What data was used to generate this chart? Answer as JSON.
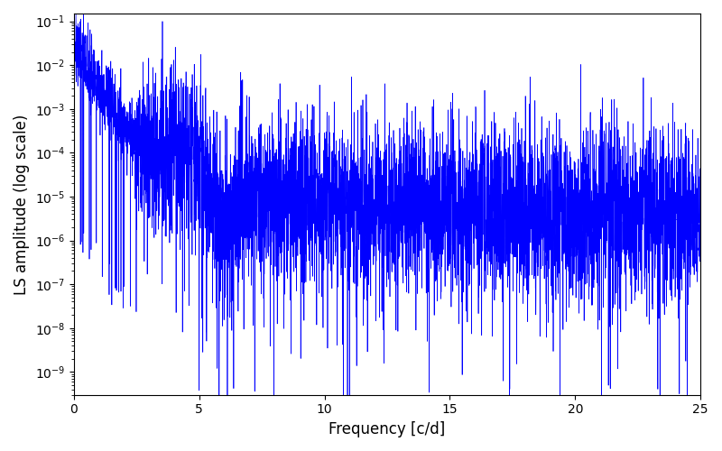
{
  "title": "",
  "xlabel": "Frequency [c/d]",
  "ylabel": "LS amplitude (log scale)",
  "xlim": [
    0,
    25
  ],
  "ylim": [
    3e-10,
    0.15
  ],
  "line_color": "#0000ff",
  "line_width": 0.5,
  "background_color": "#ffffff",
  "seed": 7,
  "n_points": 5000,
  "freq_max": 25.0
}
